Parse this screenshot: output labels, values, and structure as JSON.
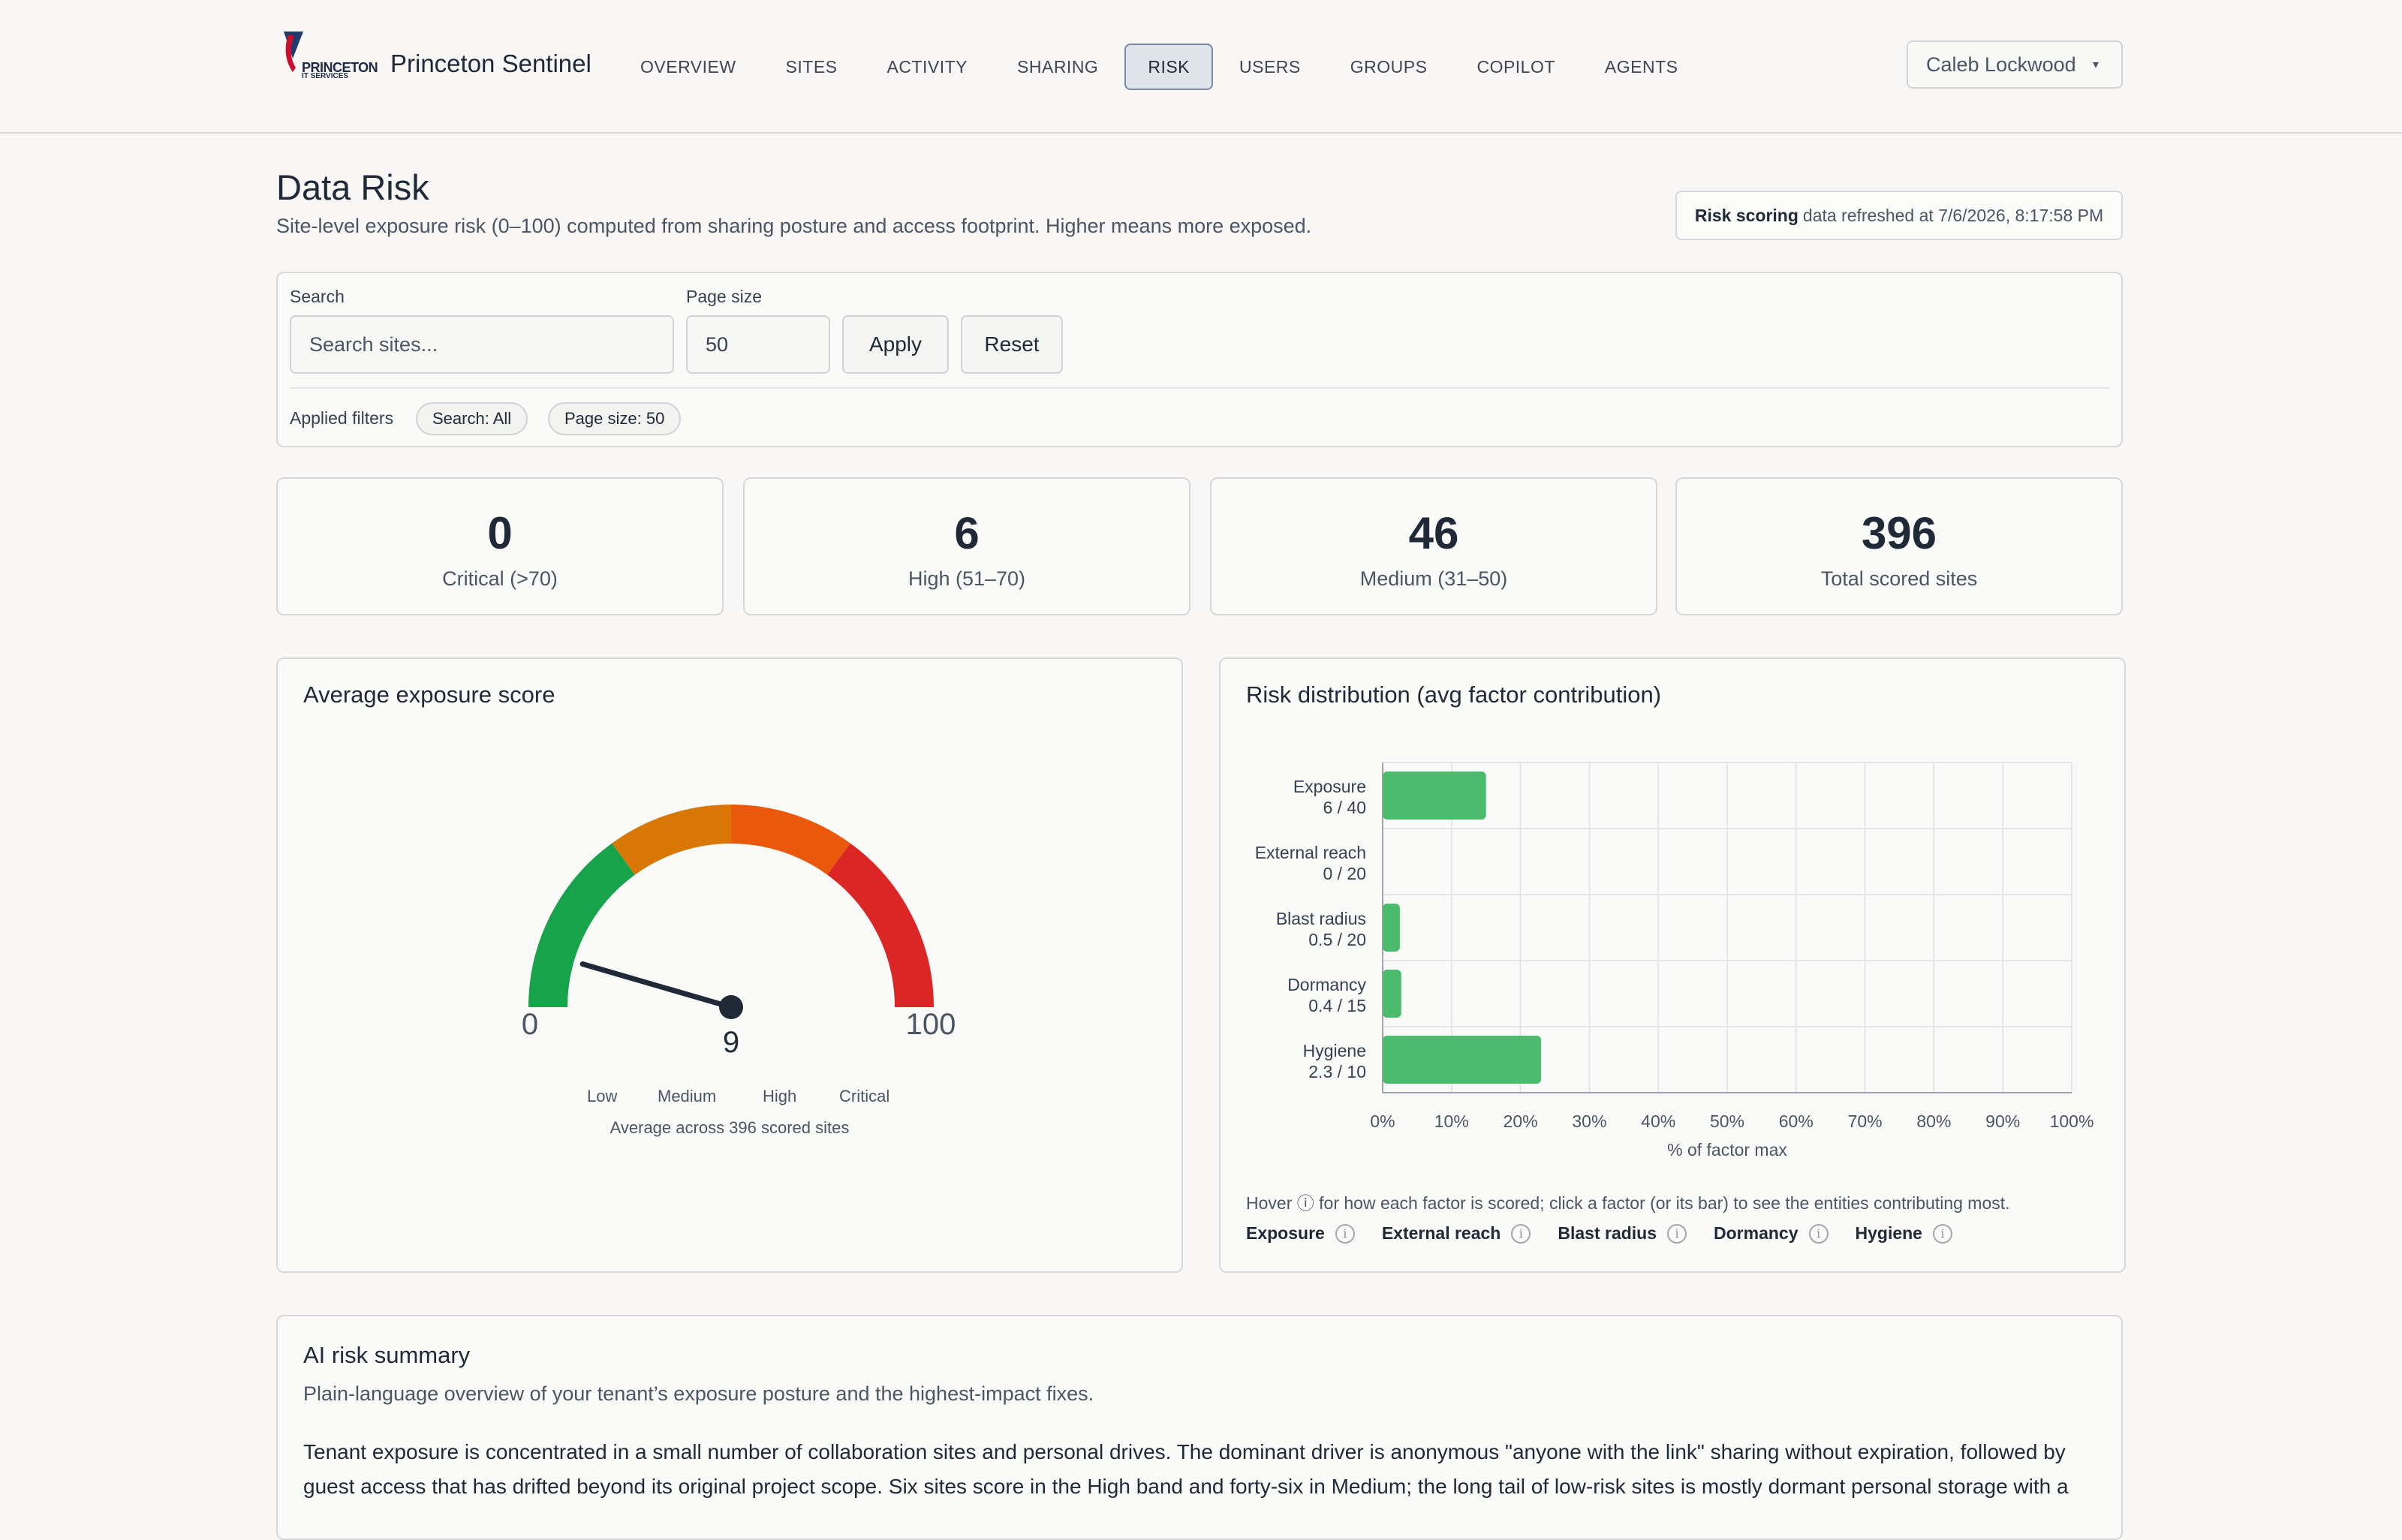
{
  "brand": {
    "logo_text": "PRINCETON",
    "logo_sub": "IT SERVICES",
    "app_name": "Princeton Sentinel"
  },
  "nav": {
    "items": [
      {
        "label": "OVERVIEW"
      },
      {
        "label": "SITES"
      },
      {
        "label": "ACTIVITY"
      },
      {
        "label": "SHARING"
      },
      {
        "label": "RISK"
      },
      {
        "label": "USERS"
      },
      {
        "label": "GROUPS"
      },
      {
        "label": "COPILOT"
      },
      {
        "label": "AGENTS"
      }
    ],
    "active": "RISK"
  },
  "user": {
    "name": "Caleb Lockwood",
    "caret": "▾"
  },
  "header": {
    "title": "Data Risk",
    "subtitle": "Site-level exposure risk (0–100) computed from sharing posture and access footprint. Higher means more exposed.",
    "refresh_bold": "Risk scoring",
    "refresh_text": "data refreshed at 7/6/2026, 8:17:58 PM"
  },
  "filters": {
    "search_label": "Search",
    "search_placeholder": "Search sites...",
    "search_value": "",
    "page_size_label": "Page size",
    "page_size_value": "50",
    "apply": "Apply",
    "reset": "Reset",
    "applied_label": "Applied filters",
    "chips": [
      "Search: All",
      "Page size: 50"
    ]
  },
  "stats": [
    {
      "value": "0",
      "caption": "Critical (>70)"
    },
    {
      "value": "6",
      "caption": "High (51–70)"
    },
    {
      "value": "46",
      "caption": "Medium (31–50)"
    },
    {
      "value": "396",
      "caption": "Total scored sites"
    }
  ],
  "gauge": {
    "title": "Average exposure score",
    "value": 9,
    "value_label": "9",
    "min_label": "0",
    "max_label": "100",
    "bands": [
      "Low",
      "Medium",
      "High",
      "Critical"
    ],
    "caption": "Average across 396 scored sites",
    "colors": {
      "low": "#16a34a",
      "medium": "#d97706",
      "high": "#ea580c",
      "critical": "#dc2626",
      "needle": "#1f2937"
    }
  },
  "chart_data": {
    "type": "bar",
    "orientation": "horizontal",
    "title": "Risk distribution (avg factor contribution)",
    "xlabel": "% of factor max",
    "ylabel": "",
    "xlim": [
      0,
      100
    ],
    "x_ticks": [
      "0%",
      "10%",
      "20%",
      "30%",
      "40%",
      "50%",
      "60%",
      "70%",
      "80%",
      "90%",
      "100%"
    ],
    "categories": [
      "Exposure",
      "External reach",
      "Blast radius",
      "Dormancy",
      "Hygiene"
    ],
    "value_labels": [
      "6 / 40",
      "0 / 20",
      "0.5 / 20",
      "0.4 / 15",
      "2.3 / 10"
    ],
    "values": [
      15,
      0,
      2.5,
      2.7,
      23
    ],
    "grid": true,
    "bar_color": "#4dbb6e"
  },
  "factors": {
    "note": "Hover ⓘ for how each factor is scored; click a factor (or its bar) to see the entities contributing most.",
    "items": [
      "Exposure",
      "External reach",
      "Blast radius",
      "Dormancy",
      "Hygiene"
    ],
    "info_glyph": "i"
  },
  "summary": {
    "title": "AI risk summary",
    "subtitle": "Plain-language overview of your tenant’s exposure posture and the highest-impact fixes.",
    "body": "Tenant exposure is concentrated in a small number of collaboration sites and personal drives. The dominant driver is anonymous \"anyone with the link\" sharing without expiration, followed by guest access that has drifted beyond its original project scope. Six sites score in the High band and forty-six in Medium; the long tail of low-risk sites is mostly dormant personal storage with a"
  }
}
